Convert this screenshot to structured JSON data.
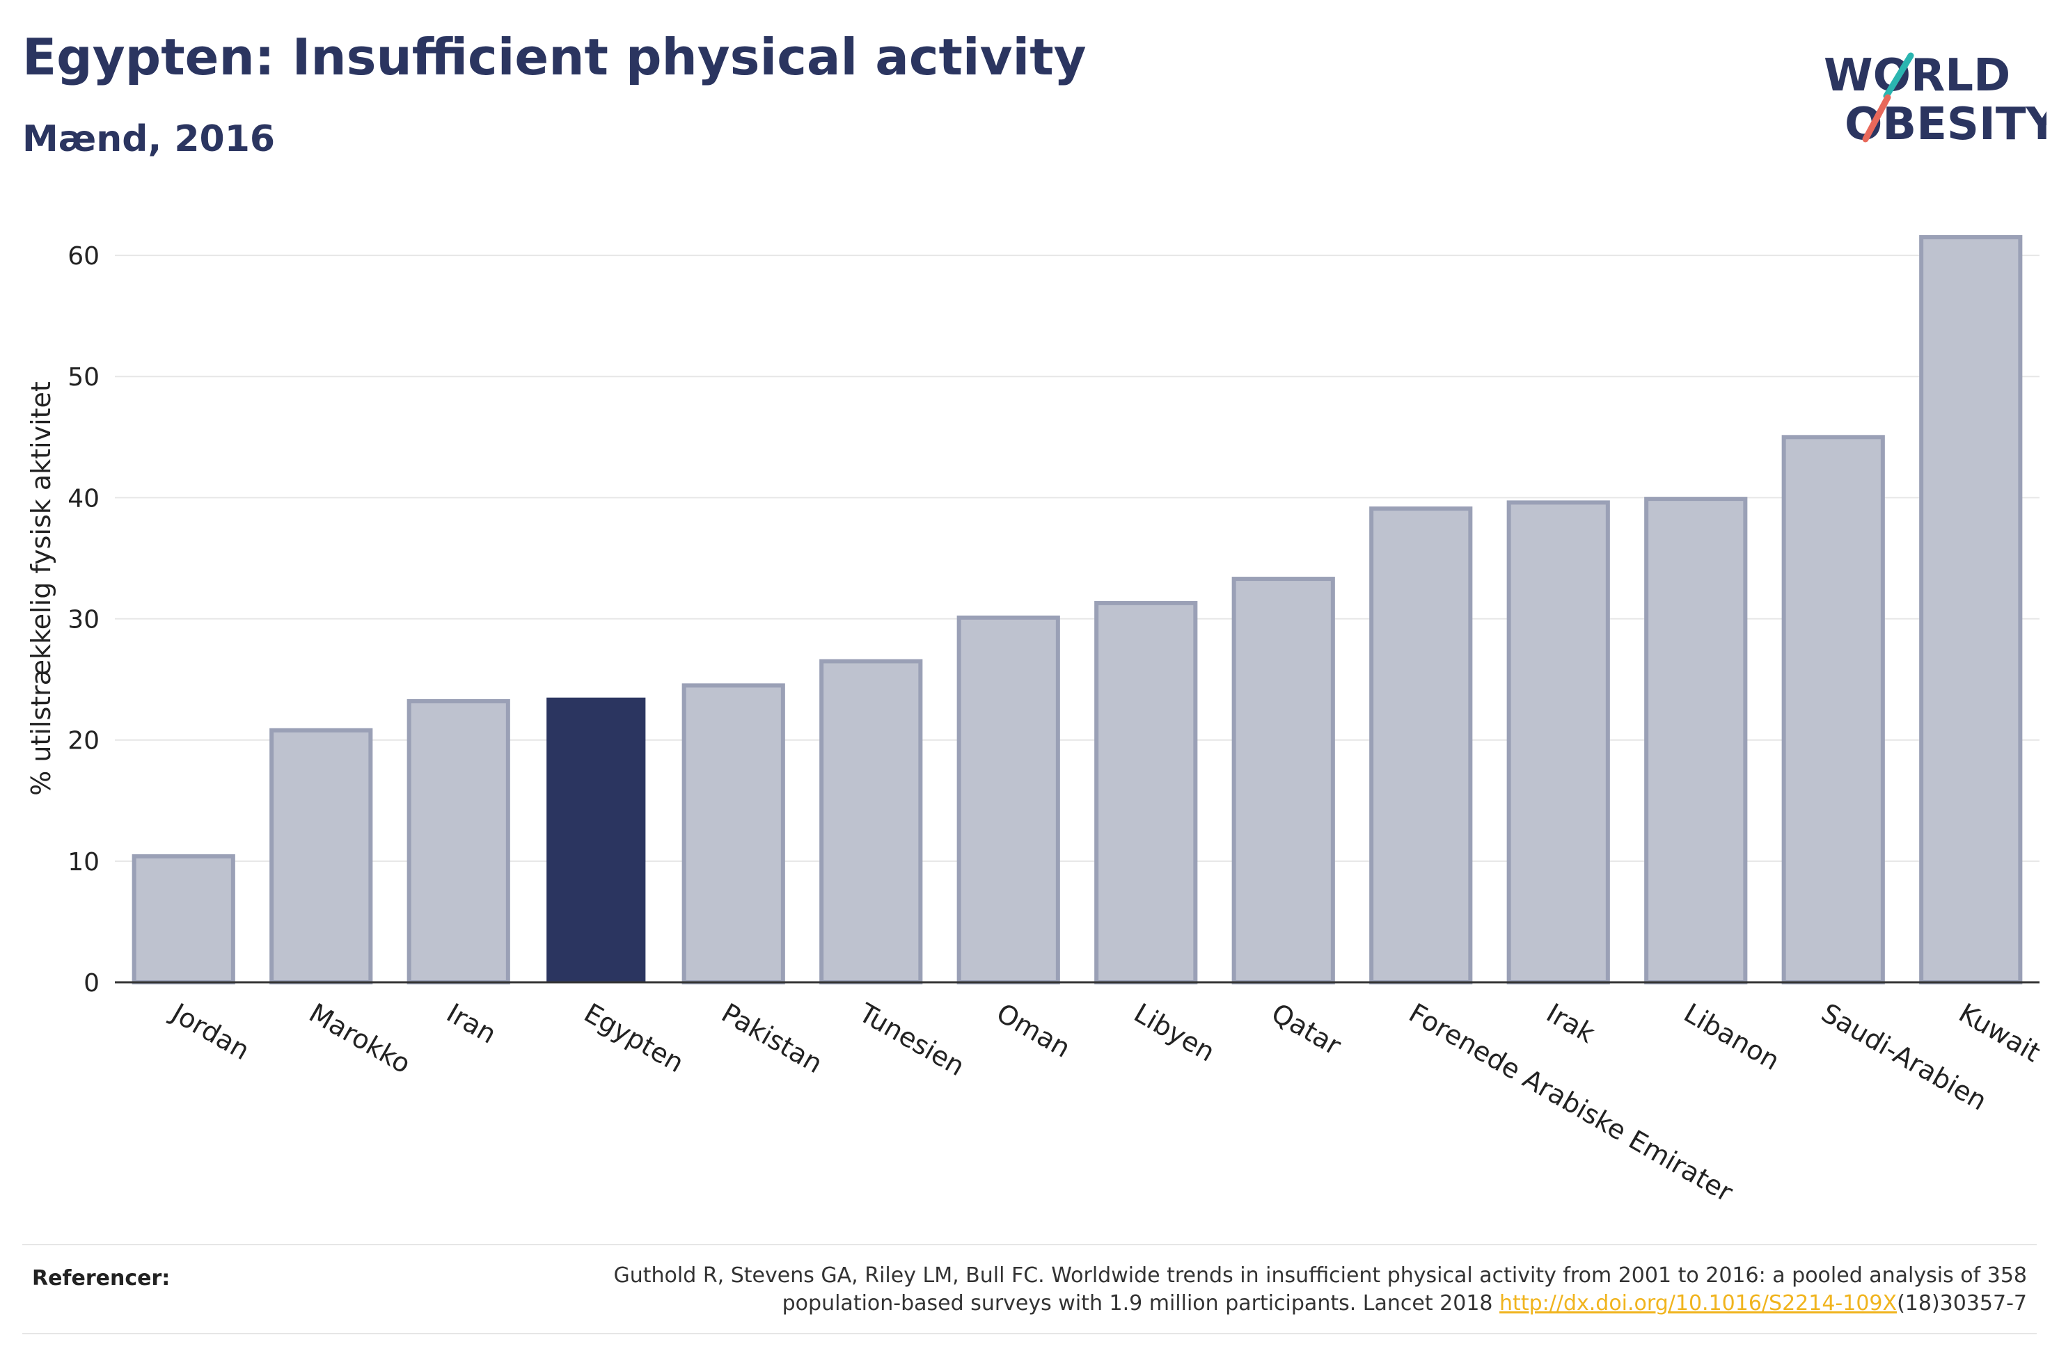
{
  "title": "Egypten: Insufficient physical activity",
  "subtitle": "Mænd, 2016",
  "logo": {
    "line1": "WORLD",
    "line2": "OBESITY",
    "primary_color": "#2b3560",
    "slash_teal": "#2bb5b0",
    "slash_coral": "#e8685a"
  },
  "colors": {
    "highlight": "#2b3560",
    "bar": "#bec2cf",
    "bar_border": "#9aa0b6",
    "grid": "#e6e6e6",
    "axis": "#333333"
  },
  "chart_data": {
    "type": "bar",
    "ylabel": "% utilstrækkelig fysisk aktivitet",
    "xlabel": "",
    "ylim": [
      0,
      65
    ],
    "yticks": [
      0,
      10,
      20,
      30,
      40,
      50,
      60
    ],
    "grid": true,
    "highlight": "Egypten",
    "categories": [
      "Jordan",
      "Marokko",
      "Iran",
      "Egypten",
      "Pakistan",
      "Tunesien",
      "Oman",
      "Libyen",
      "Qatar",
      "Forenede Arabiske Emirater",
      "Irak",
      "Libanon",
      "Saudi-Arabien",
      "Kuwait"
    ],
    "values": [
      10.4,
      20.8,
      23.2,
      23.5,
      24.5,
      26.5,
      30.1,
      31.3,
      33.3,
      39.1,
      39.6,
      39.9,
      45.0,
      61.5
    ]
  },
  "footer": {
    "label": "Referencer:",
    "text_line1": "Guthold R, Stevens GA, Riley LM, Bull FC. Worldwide trends in insufficient physical activity from 2001 to 2016: a pooled analysis of 358",
    "text_line2_pre": "population-based surveys with 1.9 million participants. Lancet 2018 ",
    "link": "http://dx.doi.org/10.1016/S2214-109X",
    "text_line2_post": "(18)30357-7"
  }
}
